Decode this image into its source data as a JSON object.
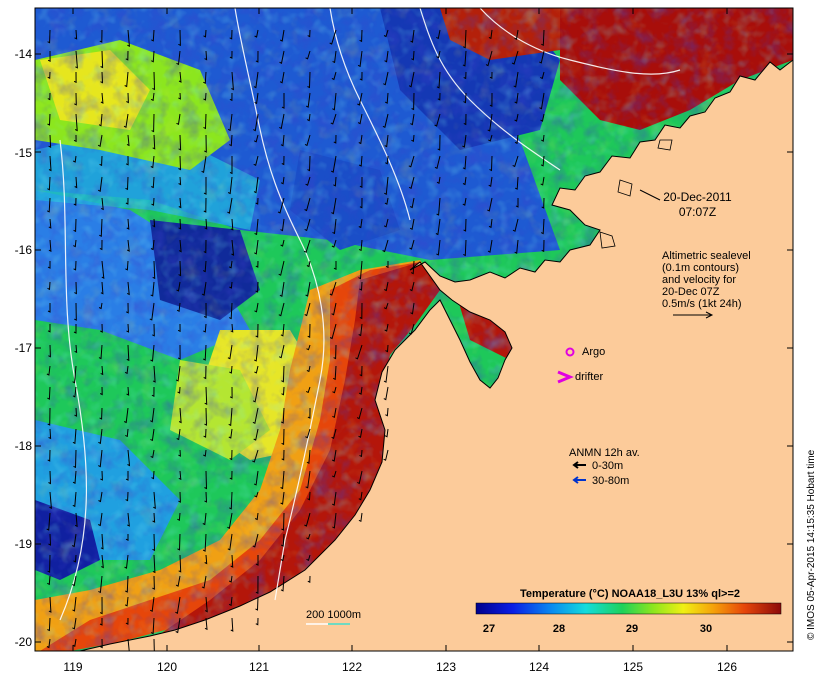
{
  "map": {
    "lat_ticks": [
      "-14",
      "-15",
      "-16",
      "-17",
      "-18",
      "-19",
      "-20"
    ],
    "lon_ticks": [
      "119",
      "120",
      "121",
      "122",
      "123",
      "124",
      "125",
      "126"
    ],
    "lat_range": [
      -20.1,
      -13.5
    ],
    "lon_range": [
      118.6,
      126.7
    ]
  },
  "annotations": {
    "date": "20-Dec-2011",
    "time": "07:07Z",
    "altimetry": [
      "Altimetric sealevel",
      "(0.1m contours)",
      "and velocity for",
      "20-Dec 07Z",
      "0.5m/s (1kt 24h)"
    ],
    "argo_label": "Argo",
    "drifter_label": "drifter",
    "anmn_title": "ANMN 12h av.",
    "anmn_shallow": "0-30m",
    "anmn_deep": "30-80m",
    "bathy_label": "200  1000m"
  },
  "colorbar": {
    "title": "Temperature (°C) NOAA18_L3U 13% ql>=2",
    "ticks": [
      "27",
      "28",
      "29",
      "30"
    ],
    "range": [
      26.7,
      30.8
    ]
  },
  "credit": "© IMOS 05-Apr-2015 14:15:35 Hobart time",
  "colors": {
    "land": "#fccb9a",
    "sst_cold": "#0a0a9e",
    "sst_mid": "#22c85a",
    "sst_warm": "#c81a0a",
    "argo": "#e000e0",
    "drifter": "#e000e0",
    "anmn_shallow": "#000000",
    "anmn_deep": "#0033cc"
  }
}
